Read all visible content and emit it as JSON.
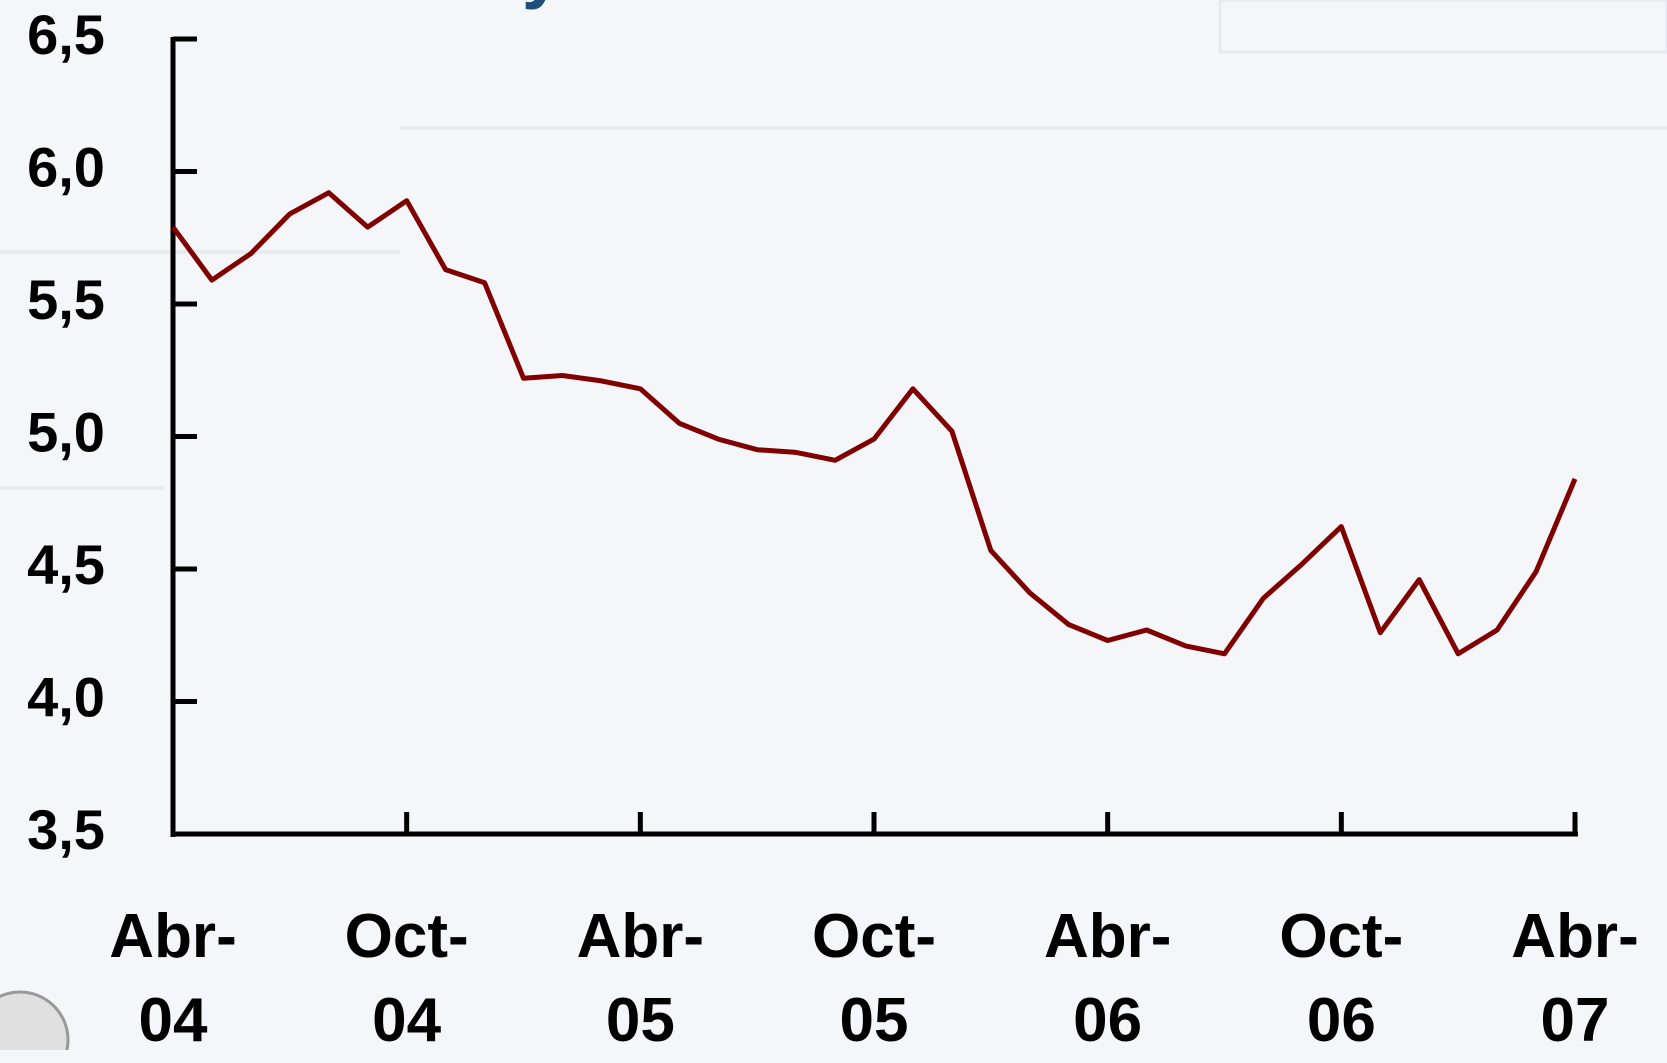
{
  "chart_data": {
    "type": "line",
    "title": "bancos y comisionistas de bolsa",
    "categories": [
      "Abr-04",
      null,
      null,
      null,
      null,
      null,
      "Oct-04",
      null,
      null,
      null,
      null,
      null,
      "Abr-05",
      null,
      null,
      null,
      null,
      null,
      "Oct-05",
      null,
      null,
      null,
      null,
      null,
      "Abr-06",
      null,
      null,
      null,
      null,
      null,
      "Oct-06",
      null,
      null,
      null,
      null,
      null,
      "Abr-07"
    ],
    "series": [
      {
        "color": "#800000",
        "values": [
          5.79,
          5.59,
          5.69,
          5.84,
          5.92,
          5.79,
          5.89,
          5.63,
          5.58,
          5.22,
          5.23,
          5.21,
          5.18,
          5.05,
          4.99,
          4.95,
          4.94,
          4.91,
          4.99,
          5.18,
          5.02,
          4.57,
          4.41,
          4.29,
          4.23,
          4.27,
          4.21,
          4.18,
          4.39,
          4.52,
          4.66,
          4.26,
          4.46,
          4.18,
          4.27,
          4.49,
          4.84
        ]
      }
    ],
    "ylim": [
      3.5,
      6.5
    ],
    "yticks": [
      {
        "value": 3.5,
        "label": "3,5"
      },
      {
        "value": 4.0,
        "label": "4,0"
      },
      {
        "value": 4.5,
        "label": "4,5"
      },
      {
        "value": 5.0,
        "label": "5,0"
      },
      {
        "value": 5.5,
        "label": "5,5"
      },
      {
        "value": 6.0,
        "label": "6,0"
      },
      {
        "value": 6.5,
        "label": "6,5"
      }
    ]
  }
}
